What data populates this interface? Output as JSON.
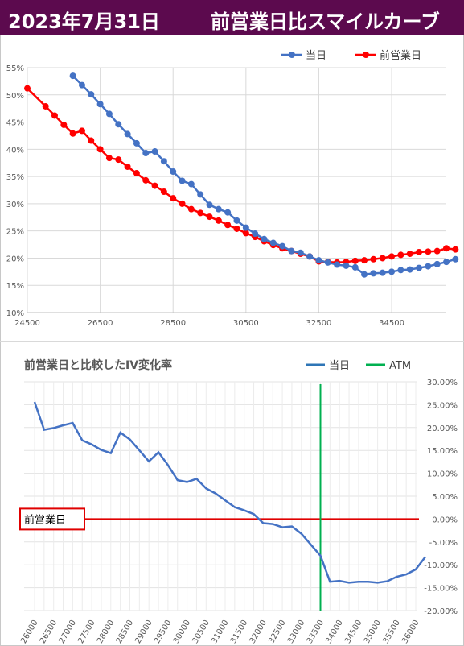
{
  "banner": {
    "date": "2023年7月31日",
    "title": "前営業日比スマイルカーブ",
    "bg_color": "#5c0a4e"
  },
  "chart_data": [
    {
      "type": "line",
      "title": "",
      "legend_position": "top-right",
      "grid": true,
      "xlim": [
        24500,
        36000
      ],
      "ylim": [
        10,
        55
      ],
      "x_ticks": [
        "24500",
        "26500",
        "28500",
        "30500",
        "32500",
        "34500"
      ],
      "y_ticks": [
        "10%",
        "15%",
        "20%",
        "25%",
        "30%",
        "35%",
        "40%",
        "45%",
        "50%",
        "55%"
      ],
      "series": [
        {
          "name": "当日",
          "color": "#4472c4",
          "points": [
            [
              25750,
              53.5
            ],
            [
              26000,
              51.8
            ],
            [
              26250,
              50.1
            ],
            [
              26500,
              48.3
            ],
            [
              26750,
              46.5
            ],
            [
              27000,
              44.6
            ],
            [
              27250,
              42.8
            ],
            [
              27500,
              41.1
            ],
            [
              27750,
              39.3
            ],
            [
              28000,
              39.6
            ],
            [
              28250,
              37.8
            ],
            [
              28500,
              35.9
            ],
            [
              28750,
              34.2
            ],
            [
              29000,
              33.6
            ],
            [
              29250,
              31.7
            ],
            [
              29500,
              29.8
            ],
            [
              29750,
              29.0
            ],
            [
              30000,
              28.4
            ],
            [
              30250,
              26.9
            ],
            [
              30500,
              25.6
            ],
            [
              30750,
              24.5
            ],
            [
              31000,
              23.5
            ],
            [
              31250,
              22.8
            ],
            [
              31500,
              22.2
            ],
            [
              31750,
              21.3
            ],
            [
              32000,
              21.0
            ],
            [
              32250,
              20.3
            ],
            [
              32500,
              19.6
            ],
            [
              32750,
              19.2
            ],
            [
              33000,
              18.8
            ],
            [
              33250,
              18.6
            ],
            [
              33500,
              18.3
            ],
            [
              33750,
              17.0
            ],
            [
              34000,
              17.2
            ],
            [
              34250,
              17.3
            ],
            [
              34500,
              17.5
            ],
            [
              34750,
              17.8
            ],
            [
              35000,
              17.9
            ],
            [
              35250,
              18.2
            ],
            [
              35500,
              18.5
            ],
            [
              35750,
              18.9
            ],
            [
              36000,
              19.3
            ],
            [
              36250,
              19.8
            ]
          ]
        },
        {
          "name": "前営業日",
          "color": "#ff0000",
          "points": [
            [
              24500,
              51.2
            ],
            [
              25000,
              47.9
            ],
            [
              25250,
              46.2
            ],
            [
              25500,
              44.5
            ],
            [
              25750,
              42.9
            ],
            [
              26000,
              43.4
            ],
            [
              26250,
              41.6
            ],
            [
              26500,
              40.0
            ],
            [
              26750,
              38.4
            ],
            [
              27000,
              38.1
            ],
            [
              27250,
              36.8
            ],
            [
              27500,
              35.6
            ],
            [
              27750,
              34.3
            ],
            [
              28000,
              33.3
            ],
            [
              28250,
              32.2
            ],
            [
              28500,
              31.0
            ],
            [
              28750,
              30.0
            ],
            [
              29000,
              29.0
            ],
            [
              29250,
              28.3
            ],
            [
              29500,
              27.6
            ],
            [
              29750,
              26.9
            ],
            [
              30000,
              26.1
            ],
            [
              30250,
              25.4
            ],
            [
              30500,
              24.6
            ],
            [
              30750,
              23.9
            ],
            [
              31000,
              23.1
            ],
            [
              31250,
              22.4
            ],
            [
              31500,
              21.8
            ],
            [
              31750,
              21.3
            ],
            [
              32000,
              20.8
            ],
            [
              32250,
              20.3
            ],
            [
              32500,
              19.4
            ],
            [
              32750,
              19.3
            ],
            [
              33000,
              19.2
            ],
            [
              33250,
              19.3
            ],
            [
              33500,
              19.5
            ],
            [
              33750,
              19.6
            ],
            [
              34000,
              19.8
            ],
            [
              34250,
              20.0
            ],
            [
              34500,
              20.3
            ],
            [
              34750,
              20.6
            ],
            [
              35000,
              20.8
            ],
            [
              35250,
              21.1
            ],
            [
              35500,
              21.2
            ],
            [
              35750,
              21.3
            ],
            [
              36000,
              21.8
            ],
            [
              36250,
              21.6
            ]
          ]
        }
      ]
    },
    {
      "type": "line",
      "title": "前営業日と比較したIV変化率",
      "legend_position": "top-right",
      "grid": true,
      "xlim": [
        26000,
        36000
      ],
      "ylim": [
        -20,
        30
      ],
      "y_axis_side": "right",
      "x_ticks": [
        "26000",
        "26500",
        "27000",
        "27500",
        "28000",
        "28500",
        "29000",
        "29500",
        "30000",
        "30500",
        "31000",
        "31500",
        "32000",
        "32500",
        "33000",
        "33500",
        "34000",
        "34500",
        "35000",
        "35500",
        "36000"
      ],
      "y_ticks": [
        "30.00%",
        "25.00%",
        "20.00%",
        "15.00%",
        "10.00%",
        "5.00%",
        "0.00%",
        "-5.00%",
        "-10.00%",
        "-15.00%",
        "-20.00%"
      ],
      "series": [
        {
          "name": "当日",
          "color": "#4472c4",
          "points": [
            [
              26000,
              25.6
            ],
            [
              26250,
              19.5
            ],
            [
              26500,
              19.9
            ],
            [
              26750,
              20.5
            ],
            [
              27000,
              21.0
            ],
            [
              27250,
              17.2
            ],
            [
              27500,
              16.3
            ],
            [
              27750,
              15.1
            ],
            [
              28000,
              14.4
            ],
            [
              28250,
              18.9
            ],
            [
              28500,
              17.4
            ],
            [
              28750,
              15.0
            ],
            [
              29000,
              12.6
            ],
            [
              29250,
              14.6
            ],
            [
              29500,
              11.8
            ],
            [
              29750,
              8.5
            ],
            [
              30000,
              8.1
            ],
            [
              30250,
              8.8
            ],
            [
              30500,
              6.7
            ],
            [
              30750,
              5.6
            ],
            [
              31000,
              4.1
            ],
            [
              31250,
              2.6
            ],
            [
              31500,
              1.9
            ],
            [
              31750,
              1.1
            ],
            [
              32000,
              -0.9
            ],
            [
              32250,
              -1.1
            ],
            [
              32500,
              -1.8
            ],
            [
              32750,
              -1.6
            ],
            [
              33000,
              -3.2
            ],
            [
              33250,
              -5.6
            ],
            [
              33500,
              -8.0
            ],
            [
              33750,
              -13.7
            ],
            [
              34000,
              -13.5
            ],
            [
              34250,
              -13.9
            ],
            [
              34500,
              -13.7
            ],
            [
              34750,
              -13.7
            ],
            [
              35000,
              -13.9
            ],
            [
              35250,
              -13.6
            ],
            [
              35500,
              -12.6
            ],
            [
              35750,
              -12.1
            ],
            [
              36000,
              -11.0
            ],
            [
              36250,
              -8.3
            ]
          ]
        },
        {
          "name": "ATM",
          "color": "#00b050",
          "x": 33500
        }
      ],
      "reference_line": {
        "label": "前営業日",
        "value": 0,
        "color": "#e00000"
      }
    }
  ]
}
